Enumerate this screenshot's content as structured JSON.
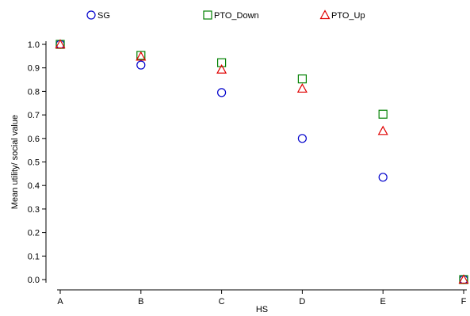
{
  "chart_data": {
    "type": "scatter",
    "title": "",
    "xlabel": "HS",
    "ylabel": "Mean utility/ social value",
    "categories": [
      "A",
      "B",
      "C",
      "D",
      "E",
      "F"
    ],
    "ylim": [
      0,
      1.0
    ],
    "yticks": [
      "0.0",
      "0.1",
      "0.2",
      "0.3",
      "0.4",
      "0.5",
      "0.6",
      "0.7",
      "0.8",
      "0.9",
      "1.0"
    ],
    "grid": false,
    "legend_position": "top",
    "series": [
      {
        "name": "SG",
        "marker": "circle",
        "color": "#0000cc",
        "values": [
          1.0,
          0.912,
          0.795,
          0.6,
          0.435,
          0.0
        ]
      },
      {
        "name": "PTO_Down",
        "marker": "square",
        "color": "#008000",
        "values": [
          1.0,
          0.953,
          0.922,
          0.853,
          0.703,
          0.0
        ]
      },
      {
        "name": "PTO_Up",
        "marker": "triangle",
        "color": "#e00000",
        "values": [
          1.0,
          0.948,
          0.893,
          0.812,
          0.632,
          0.0
        ]
      }
    ]
  }
}
